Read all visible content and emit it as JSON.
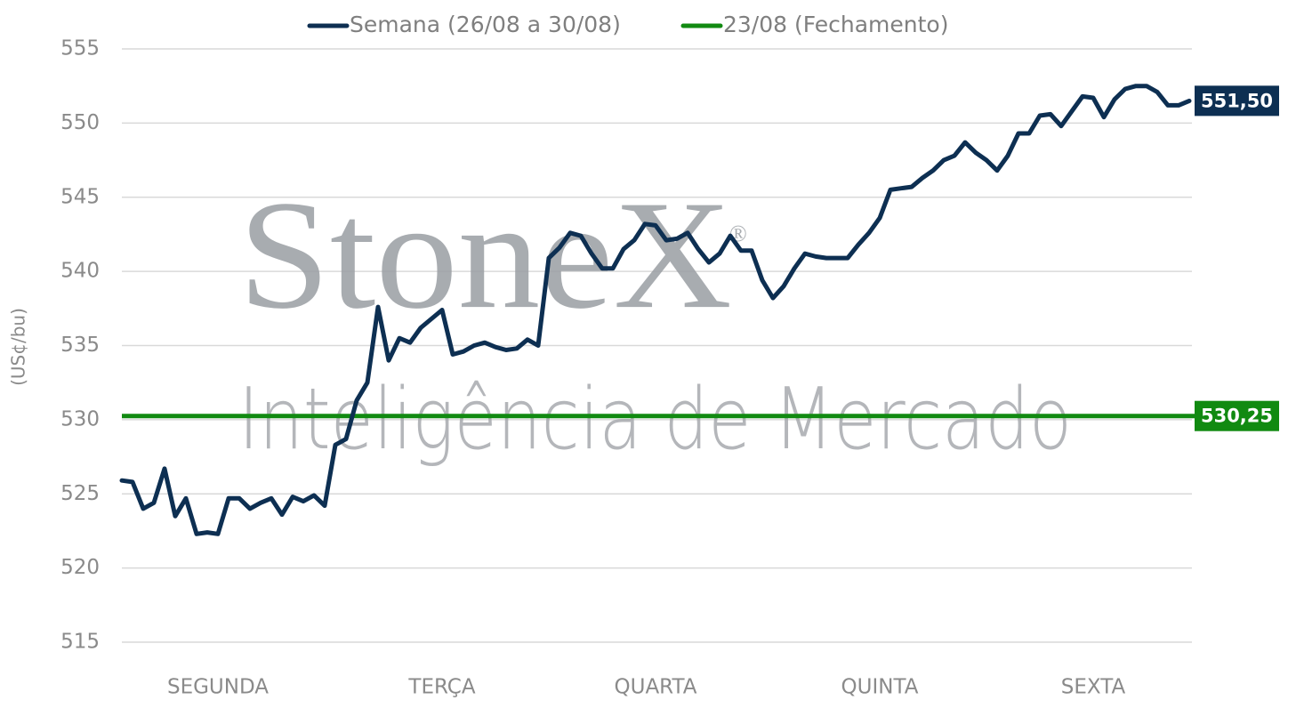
{
  "chart_data": {
    "type": "line",
    "y_label": "(US¢/bu)",
    "watermark": {
      "brand": "StoneX",
      "mark": "®",
      "tagline": "Inteligência de Mercado"
    },
    "categories": [
      null,
      null,
      null,
      null,
      null,
      null,
      null,
      null,
      null,
      "SEGUNDA",
      null,
      null,
      null,
      null,
      null,
      null,
      null,
      null,
      null,
      null,
      null,
      null,
      null,
      null,
      null,
      null,
      null,
      null,
      null,
      null,
      "TERÇA",
      null,
      null,
      null,
      null,
      null,
      null,
      null,
      null,
      null,
      null,
      null,
      null,
      null,
      null,
      null,
      null,
      null,
      null,
      null,
      "QUARTA",
      null,
      null,
      null,
      null,
      null,
      null,
      null,
      null,
      null,
      null,
      null,
      null,
      null,
      null,
      null,
      null,
      null,
      null,
      null,
      null,
      "QUINTA",
      null,
      null,
      null,
      null,
      null,
      null,
      null,
      null,
      null,
      null,
      null,
      null,
      null,
      null,
      null,
      null,
      null,
      null,
      null,
      "SEXTA",
      null,
      null,
      null,
      null,
      null,
      null,
      null,
      null,
      null
    ],
    "series": [
      {
        "name": "Semana (26/08 a 30/08)",
        "color": "#0d2f52",
        "values": [
          525.9,
          525.8,
          524.0,
          524.4,
          526.7,
          523.5,
          524.7,
          522.3,
          522.4,
          522.3,
          524.7,
          524.7,
          524.0,
          524.4,
          524.7,
          523.6,
          524.8,
          524.5,
          524.9,
          524.2,
          528.3,
          528.7,
          531.3,
          532.5,
          537.6,
          534.0,
          535.5,
          535.2,
          536.2,
          536.8,
          537.4,
          534.4,
          534.6,
          535.0,
          535.2,
          534.9,
          534.7,
          534.8,
          535.4,
          535.0,
          540.9,
          541.6,
          542.6,
          542.4,
          541.2,
          540.2,
          540.2,
          541.5,
          542.1,
          543.2,
          543.1,
          542.1,
          542.2,
          542.6,
          541.5,
          540.6,
          541.2,
          542.4,
          541.4,
          541.4,
          539.4,
          538.2,
          539.0,
          540.2,
          541.2,
          541.0,
          540.9,
          540.9,
          540.9,
          541.8,
          542.6,
          543.6,
          545.5,
          545.6,
          545.7,
          546.3,
          546.8,
          547.5,
          547.8,
          548.7,
          548.0,
          547.5,
          546.8,
          547.8,
          549.3,
          549.3,
          550.5,
          550.6,
          549.8,
          550.8,
          551.8,
          551.7,
          550.4,
          551.6,
          552.3,
          552.5,
          552.5,
          552.1,
          551.2,
          551.2,
          551.5
        ],
        "value_labels": [
          null,
          null,
          null,
          null,
          null,
          null,
          null,
          null,
          null,
          null,
          null,
          null,
          null,
          null,
          null,
          null,
          null,
          null,
          null,
          null,
          null,
          null,
          null,
          null,
          null,
          null,
          null,
          null,
          null,
          null,
          null,
          null,
          null,
          null,
          null,
          null,
          null,
          null,
          null,
          null,
          null,
          null,
          null,
          null,
          null,
          null,
          null,
          null,
          null,
          null,
          null,
          null,
          null,
          null,
          null,
          null,
          null,
          null,
          null,
          null,
          null,
          null,
          null,
          null,
          null,
          null,
          null,
          null,
          null,
          null,
          null,
          null,
          null,
          null,
          null,
          null,
          null,
          null,
          null,
          null,
          null,
          null,
          null,
          null,
          null,
          null,
          null,
          null,
          null,
          null,
          null,
          null,
          null,
          null,
          null,
          null,
          null,
          null,
          null,
          null,
          "551,50"
        ]
      }
    ],
    "reference_line": {
      "name": "23/08 (Fechamento)",
      "color": "#118a11",
      "value": 530.25,
      "value_label": "530,25"
    },
    "ylim": [
      515,
      555
    ],
    "yticks": [
      515,
      520,
      525,
      530,
      535,
      540,
      545,
      550,
      555
    ],
    "grid": true
  }
}
